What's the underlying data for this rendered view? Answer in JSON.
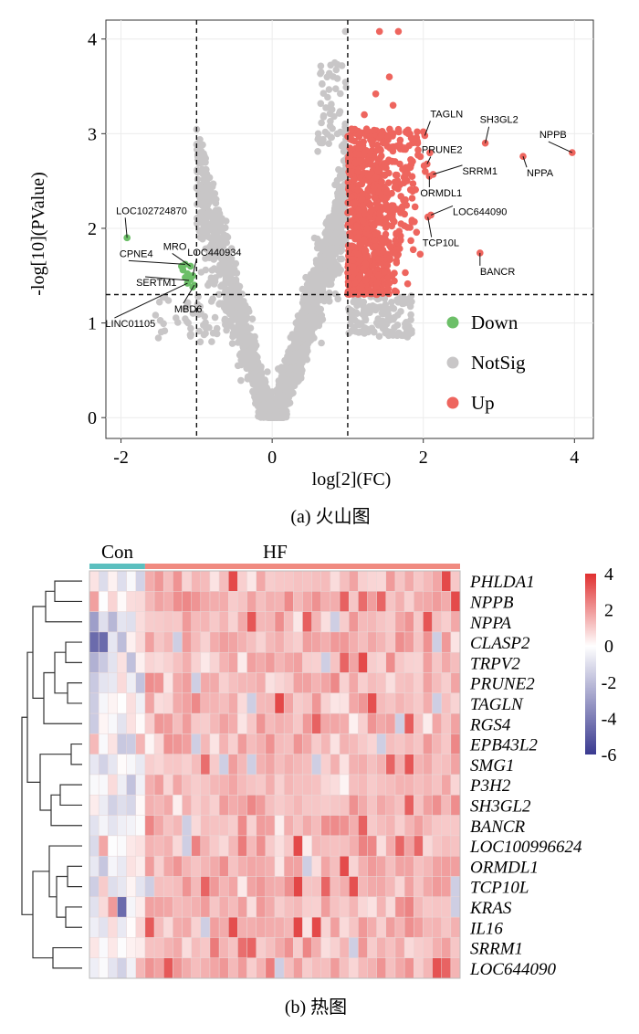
{
  "chart_data": [
    {
      "type": "scatter",
      "subtitle": "(a) 火山图",
      "xlabel": "log[2](FC)",
      "ylabel": "-log[10](PValue)",
      "xlim": [
        -2.2,
        4.25
      ],
      "ylim": [
        -0.22,
        4.2
      ],
      "xticks": [
        -2,
        0,
        2,
        4
      ],
      "yticks": [
        0,
        1,
        2,
        3,
        4
      ],
      "grid": true,
      "thresholds": {
        "x": [
          -1,
          1
        ],
        "y": 1.3
      },
      "legend": {
        "placement": "bottom-right",
        "entries": [
          "Down",
          "NotSig",
          "Up"
        ]
      },
      "colors": {
        "Down": "#6cbf68",
        "NotSig": "#c8c6c7",
        "Up": "#ee655e"
      },
      "labeled_points": [
        {
          "name": "LOC102724870",
          "x": -1.92,
          "y": 1.9,
          "group": "Down"
        },
        {
          "name": "CPNE4",
          "x": -1.15,
          "y": 1.62,
          "group": "Down"
        },
        {
          "name": "MRO",
          "x": -1.08,
          "y": 1.6,
          "group": "Down"
        },
        {
          "name": "LOC440934",
          "x": -1.05,
          "y": 1.5,
          "group": "Down"
        },
        {
          "name": "SERTM1",
          "x": -1.1,
          "y": 1.45,
          "group": "Down"
        },
        {
          "name": "MBD6",
          "x": -1.03,
          "y": 1.4,
          "group": "Down"
        },
        {
          "name": "LINC01105",
          "x": -1.12,
          "y": 1.42,
          "group": "Down"
        },
        {
          "name": "TAGLN",
          "x": 2.02,
          "y": 2.98,
          "group": "Up"
        },
        {
          "name": "SH3GL2",
          "x": 2.82,
          "y": 2.9,
          "group": "Up"
        },
        {
          "name": "NPPB",
          "x": 3.97,
          "y": 2.8,
          "group": "Up"
        },
        {
          "name": "NPPA",
          "x": 3.32,
          "y": 2.76,
          "group": "Up"
        },
        {
          "name": "PRUNE2",
          "x": 2.05,
          "y": 2.68,
          "group": "Up"
        },
        {
          "name": "SRRM1",
          "x": 2.13,
          "y": 2.57,
          "group": "Up"
        },
        {
          "name": "ORMDL1",
          "x": 2.08,
          "y": 2.55,
          "group": "Up"
        },
        {
          "name": "LOC644090",
          "x": 2.1,
          "y": 2.14,
          "group": "Up"
        },
        {
          "name": "TCP10L",
          "x": 2.06,
          "y": 2.12,
          "group": "Up"
        },
        {
          "name": "BANCR",
          "x": 2.75,
          "y": 1.74,
          "group": "Up"
        }
      ]
    },
    {
      "type": "heatmap",
      "subtitle": "(b) 热图",
      "groups": [
        {
          "name": "Con",
          "columns": 6,
          "color": "#5bbfbf"
        },
        {
          "name": "HF",
          "columns": 34,
          "color": "#f08a80"
        }
      ],
      "rows": [
        "PHLDA1",
        "NPPB",
        "NPPA",
        "CLASP2",
        "TRPV2",
        "PRUNE2",
        "TAGLN",
        "RGS4",
        "EPB43L2",
        "SMG1",
        "P3H2",
        "SH3GL2",
        "BANCR",
        "LOC100996624",
        "ORMDL1",
        "TCP10L",
        "KRAS",
        "IL16",
        "SRRM1",
        "LOC644090"
      ],
      "colorbar": {
        "ticks": [
          4,
          2,
          0,
          -2,
          -4,
          -6
        ],
        "high": "#e03030",
        "mid": "#ffffff",
        "low": "#3a3a90",
        "range": [
          -6,
          4
        ]
      }
    }
  ]
}
